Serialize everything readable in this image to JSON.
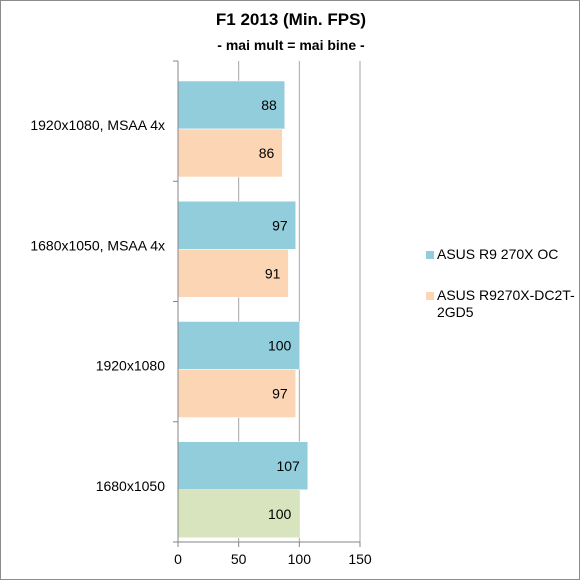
{
  "chart_data": {
    "type": "bar",
    "orientation": "horizontal",
    "title": "F1 2013 (Min. FPS)",
    "subtitle": "- mai mult = mai bine -",
    "categories": [
      "1920x1080, MSAA 4x",
      "1680x1050, MSAA 4x",
      "1920x1080",
      "1680x1050"
    ],
    "series": [
      {
        "name": "ASUS R9 270X OC",
        "values": [
          88,
          97,
          100,
          107
        ],
        "color": "#92cddc"
      },
      {
        "name": "ASUS R9270X-DC2T-2GD5",
        "values": [
          86,
          91,
          97,
          100
        ],
        "color": "#fcd5b5"
      }
    ],
    "highlight": {
      "series_index": 1,
      "category_index": 3,
      "color": "#d7e4bd"
    },
    "xlim": [
      0,
      150
    ],
    "xticks": [
      "0",
      "50",
      "100",
      "150"
    ],
    "grid": true,
    "legend_position": "right",
    "data_labels": true
  }
}
